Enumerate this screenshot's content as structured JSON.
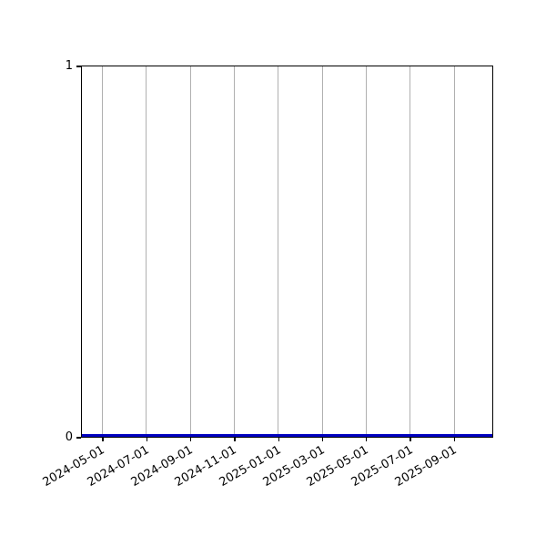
{
  "chart_data": {
    "type": "line",
    "title": "",
    "xlabel": "",
    "ylabel": "",
    "x_tick_labels": [
      "2024-05-01",
      "2024-07-01",
      "2024-09-01",
      "2024-11-01",
      "2025-01-01",
      "2025-03-01",
      "2025-05-01",
      "2025-07-01",
      "2025-09-01"
    ],
    "x_tick_rotation_deg": 30,
    "y_tick_labels": [
      "0",
      "1"
    ],
    "ylim": [
      0,
      1
    ],
    "grid": {
      "vertical": true,
      "horizontal": false,
      "color": "#b0b0b0"
    },
    "series": [
      {
        "name": "constant-zero-line",
        "color": "#0000c0",
        "y_constant": 0,
        "description": "flat horizontal line at y=0 spanning the full x-axis width"
      }
    ],
    "legend_visible": false,
    "colors": {
      "spine": "#000000",
      "tick": "#000000",
      "label": "#000000",
      "background": "#ffffff"
    }
  }
}
